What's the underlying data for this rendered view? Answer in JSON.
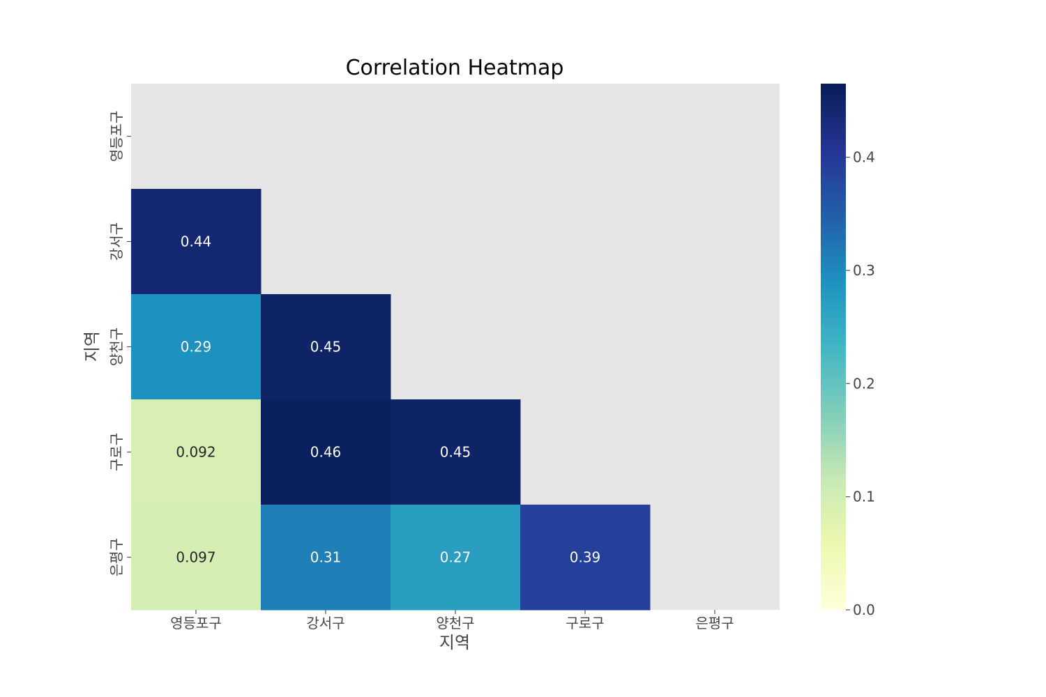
{
  "chart_data": {
    "type": "heatmap",
    "title": "Correlation Heatmap",
    "xlabel": "지역",
    "ylabel": "지역",
    "x_categories": [
      "영등포구",
      "강서구",
      "양천구",
      "구로구",
      "은평구"
    ],
    "y_categories": [
      "영등포구",
      "강서구",
      "양천구",
      "구로구",
      "은평구"
    ],
    "mask": "upper triangle including diagonal",
    "cells": [
      {
        "row": 1,
        "col": 0,
        "value": 0.44,
        "label": "0.44"
      },
      {
        "row": 2,
        "col": 0,
        "value": 0.29,
        "label": "0.29"
      },
      {
        "row": 2,
        "col": 1,
        "value": 0.45,
        "label": "0.45"
      },
      {
        "row": 3,
        "col": 0,
        "value": 0.092,
        "label": "0.092"
      },
      {
        "row": 3,
        "col": 1,
        "value": 0.46,
        "label": "0.46"
      },
      {
        "row": 3,
        "col": 2,
        "value": 0.45,
        "label": "0.45"
      },
      {
        "row": 4,
        "col": 0,
        "value": 0.097,
        "label": "0.097"
      },
      {
        "row": 4,
        "col": 1,
        "value": 0.31,
        "label": "0.31"
      },
      {
        "row": 4,
        "col": 2,
        "value": 0.27,
        "label": "0.27"
      },
      {
        "row": 4,
        "col": 3,
        "value": 0.39,
        "label": "0.39"
      }
    ],
    "colormap": "YlGnBu",
    "colorbar": {
      "range": [
        0.0,
        0.465
      ],
      "ticks": [
        0.0,
        0.1,
        0.2,
        0.3,
        0.4
      ],
      "tick_labels": [
        "0.0",
        "0.1",
        "0.2",
        "0.3",
        "0.4"
      ]
    },
    "grid": false,
    "legend": "colorbar right",
    "background_color": "#e5e5e5"
  }
}
